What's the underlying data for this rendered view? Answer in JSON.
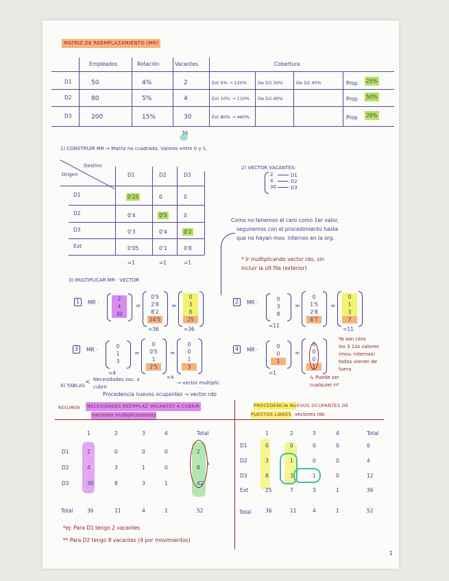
{
  "title": "MATRIZ DE REEMPLAZAMIENTO (MR)",
  "table1": {
    "headers": [
      "Empleados",
      "Rotación",
      "Vacantes",
      "Cobertura"
    ],
    "rows": [
      {
        "label": "D1",
        "empleados": "50",
        "rotacion": "4%",
        "vacantes": "2",
        "cobertura": [
          "Ext 5% → 120%",
          "De D3 30%",
          "De D2 40%"
        ],
        "prop_label": "Prop",
        "prop_value": "25%"
      },
      {
        "label": "D2",
        "empleados": "80",
        "rotacion": "5%",
        "vacantes": "4",
        "cobertura": [
          "Ext 10% → 110%",
          "De D3 40%",
          ""
        ],
        "prop_label": "Prop",
        "prop_value": "50%"
      },
      {
        "label": "D3",
        "empleados": "200",
        "rotacion": "15%",
        "vacantes": "30",
        "cobertura": [
          "Ext 80% → 460%",
          "",
          ""
        ],
        "prop_label": "Prop",
        "prop_value": "20%"
      }
    ],
    "vacantes_total": "36"
  },
  "step1": "1) CONSTRUIR MR → Matriz no cuadrada. Valores entre 0 y 1.",
  "matrix": {
    "corner_destino": "Destino",
    "corner_origen": "Origen",
    "cols": [
      "D1",
      "D2",
      "D3"
    ],
    "rows": [
      {
        "label": "D1",
        "values": [
          "0'25",
          "0",
          "0"
        ]
      },
      {
        "label": "D2",
        "values": [
          "0'4",
          "0'5",
          "0"
        ]
      },
      {
        "label": "D3",
        "values": [
          "0'3",
          "0'4",
          "0'2"
        ]
      },
      {
        "label": "Ext",
        "values": [
          "0'05",
          "0'1",
          "0'8"
        ]
      }
    ],
    "sums": [
      "=1",
      "=1",
      "=1"
    ],
    "highlight_color": "#b7e35a"
  },
  "step2": {
    "title": "2) VECTOR VACANTES:",
    "values": [
      "2",
      "4",
      "30"
    ],
    "labels": [
      "D1",
      "D2",
      "D3"
    ]
  },
  "note": {
    "lines": [
      "Como no tenemos el cero como 1er valor,",
      "seguiremos con el procedimiento hasta",
      "que no hayan mov. internos en la org."
    ],
    "red_lines": [
      "* Ir multiplicando vector rdo, sin",
      "incluir la últ fila (exterior)"
    ]
  },
  "step3": {
    "title": "3) MULTIPLICAR MR · VECTOR",
    "op": "MR ·",
    "equations": [
      {
        "n": "1",
        "input": [
          "2",
          "4",
          "30"
        ],
        "product": [
          "0'5",
          "2'8",
          "8'2",
          "24'5"
        ],
        "product_sum": "=36",
        "result": [
          "0",
          "3",
          "8",
          "25"
        ],
        "result_sum": "=36",
        "input_sum": ""
      },
      {
        "n": "2",
        "input": [
          "0",
          "3",
          "8"
        ],
        "input_sum": "=11",
        "product": [
          "0",
          "1'5",
          "2'8",
          "6'7"
        ],
        "product_sum": "",
        "result": [
          "0",
          "1",
          "3",
          "7"
        ],
        "result_sum": "=11"
      },
      {
        "n": "3",
        "input": [
          "0",
          "1",
          "3"
        ],
        "input_sum": "=4",
        "product": [
          "0",
          "0'5",
          "1",
          "2'5"
        ],
        "product_sum": "",
        "result": [
          "0",
          "0",
          "1",
          "3"
        ],
        "result_sum": ""
      },
      {
        "n": "4",
        "input": [
          "0",
          "0",
          "1"
        ],
        "input_sum": "=1",
        "product": [
          "0",
          "0",
          "0",
          "1"
        ],
        "product_sum": "",
        "result": [],
        "result_sum": ""
      }
    ],
    "eq4_note": [
      "Ya son cero",
      "los 3 1os valores",
      "(mov. internos)",
      "todos vienen de",
      "fuera"
    ],
    "eq4_subnote": [
      "↳ Puede ser",
      "cualquier nº"
    ]
  },
  "step4": {
    "label": "4) TABLAS",
    "item1": "Necesidades vac. a cubrir",
    "item1_eq": "=4",
    "item1_arrow": "→ vector multiplic",
    "item2": "Procedencia nuevos ocupantes → vector rdo"
  },
  "summary_left": {
    "prefix": "RESUMEN",
    "title": "NECESIDADES REEMPLAZ VACANTES A CUBRIR",
    "subtitle": "(vectores multiplicaciones)",
    "cols": [
      "1",
      "2",
      "3",
      "4",
      "Total"
    ],
    "rows": [
      {
        "label": "D1",
        "values": [
          "2",
          "0",
          "0",
          "0",
          "2"
        ]
      },
      {
        "label": "D2",
        "values": [
          "4",
          "3",
          "1",
          "0",
          "8"
        ]
      },
      {
        "label": "D3",
        "values": [
          "30",
          "8",
          "3",
          "1",
          "42"
        ]
      }
    ],
    "total": {
      "label": "Total",
      "values": [
        "36",
        "11",
        "4",
        "1",
        "52"
      ]
    },
    "annotation": "4"
  },
  "summary_right": {
    "title_line1": "PROCEDENCIA NUEVOS OCUPANTES DE",
    "title_line2": "PUESTOS LIBRES",
    "subtitle": "vectores rdo",
    "cols": [
      "1",
      "2",
      "3",
      "4",
      "Total"
    ],
    "rows": [
      {
        "label": "D1",
        "values": [
          "0",
          "0",
          "0",
          "0",
          "0"
        ]
      },
      {
        "label": "D2",
        "values": [
          "3",
          "1",
          "0",
          "0",
          "4"
        ]
      },
      {
        "label": "D3",
        "values": [
          "8",
          "3",
          "1",
          "0",
          "12"
        ]
      },
      {
        "label": "Ext",
        "values": [
          "25",
          "7",
          "3",
          "1",
          "36"
        ]
      }
    ],
    "total": {
      "label": "Total",
      "values": [
        "36",
        "11",
        "4",
        "1",
        "52"
      ]
    }
  },
  "footnotes": [
    "*ej: Para D1 tengo 2 vacantes",
    "** Para D2 tengo 8 vacantes (4 por movimientos)"
  ],
  "page_number": "1",
  "colors": {
    "ink": "#3d3b86",
    "red_ink": "#8c2230",
    "orange": "#f7b27a",
    "green": "#b7e35a",
    "yellow": "#f3f46a",
    "purple": "#d98cf0",
    "teal": "#7ed6c0"
  }
}
